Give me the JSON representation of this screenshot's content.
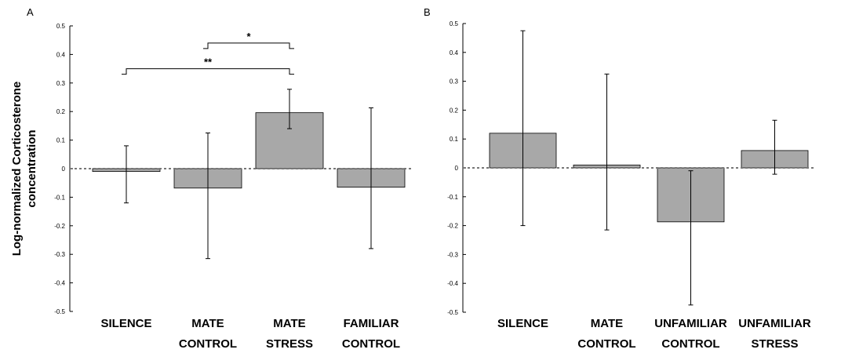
{
  "chart_data": [
    {
      "type": "bar",
      "panel_label": "A",
      "categories": [
        [
          "SILENCE"
        ],
        [
          "MATE",
          "CONTROL"
        ],
        [
          "MATE",
          "STRESS"
        ],
        [
          "FAMILIAR",
          "CONTROL"
        ]
      ],
      "values": [
        -0.01,
        -0.068,
        0.196,
        -0.065
      ],
      "error_low": [
        -0.12,
        -0.315,
        0.14,
        -0.28
      ],
      "error_high": [
        0.08,
        0.125,
        0.278,
        0.213
      ],
      "ylabel_lines": [
        "Log-normalized Corticosterone",
        "concentration"
      ],
      "ylim": [
        -0.5,
        0.5
      ],
      "yticks": [
        "0.5",
        "0.4",
        "0.3",
        "0.2",
        "0.1",
        "0",
        "-0.1",
        "-0.2",
        "-0.3",
        "-0.4",
        "-0.5"
      ],
      "yticks_values": [
        0.5,
        0.4,
        0.3,
        0.2,
        0.1,
        0,
        -0.1,
        -0.2,
        -0.3,
        -0.4,
        -0.5
      ],
      "significance": [
        {
          "from": 1,
          "to": 2,
          "label": "*",
          "y": 0.44
        },
        {
          "from": 0,
          "to": 2,
          "label": "**",
          "y": 0.35
        }
      ],
      "bar_color": "#a8a8a8",
      "zero_line": "dotted"
    },
    {
      "type": "bar",
      "panel_label": "B",
      "categories": [
        [
          "SILENCE"
        ],
        [
          "MATE",
          "CONTROL"
        ],
        [
          "UNFAMILIAR",
          "CONTROL"
        ],
        [
          "UNFAMILIAR",
          "STRESS"
        ]
      ],
      "values": [
        0.12,
        0.01,
        -0.187,
        0.06
      ],
      "error_low": [
        -0.2,
        -0.215,
        -0.475,
        -0.022
      ],
      "error_high": [
        0.475,
        0.325,
        -0.01,
        0.165
      ],
      "ylabel_lines": [],
      "ylim": [
        -0.5,
        0.5
      ],
      "yticks": [
        "0.5",
        "0.4",
        "0.3",
        "0.2",
        "0.1",
        "0",
        "-0.1",
        "-0.2",
        "-0.3",
        "-0.4",
        "-0.5"
      ],
      "yticks_values": [
        0.5,
        0.4,
        0.3,
        0.2,
        0.1,
        0,
        -0.1,
        -0.2,
        -0.3,
        -0.4,
        -0.5
      ],
      "significance": [],
      "bar_color": "#a8a8a8",
      "zero_line": "dotted"
    }
  ]
}
